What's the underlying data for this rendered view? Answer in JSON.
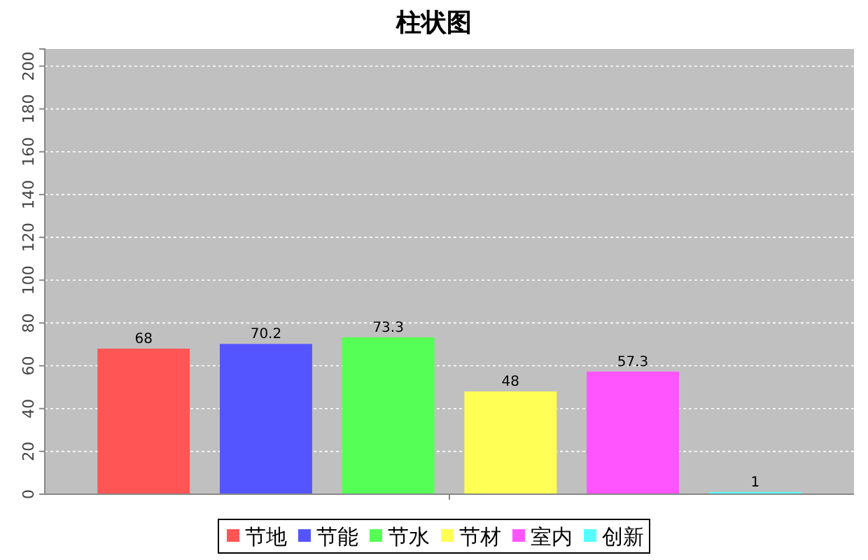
{
  "chart_data": {
    "type": "bar",
    "title": "柱状图",
    "categories": [
      null
    ],
    "series": [
      {
        "name": "节地",
        "color": "#ff5555",
        "values": [
          68
        ]
      },
      {
        "name": "节能",
        "color": "#5555ff",
        "values": [
          70.2
        ]
      },
      {
        "name": "节水",
        "color": "#55ff55",
        "values": [
          73.3
        ]
      },
      {
        "name": "节材",
        "color": "#ffff55",
        "values": [
          48
        ]
      },
      {
        "name": "室内",
        "color": "#ff55ff",
        "values": [
          57.3
        ]
      },
      {
        "name": "创新",
        "color": "#55ffff",
        "values": [
          1
        ]
      }
    ],
    "ylim": [
      0,
      208
    ],
    "yticks": [
      0,
      20,
      40,
      60,
      80,
      100,
      120,
      140,
      160,
      180,
      200
    ],
    "grid": "y",
    "legend": "bottom",
    "data_labels": true
  }
}
